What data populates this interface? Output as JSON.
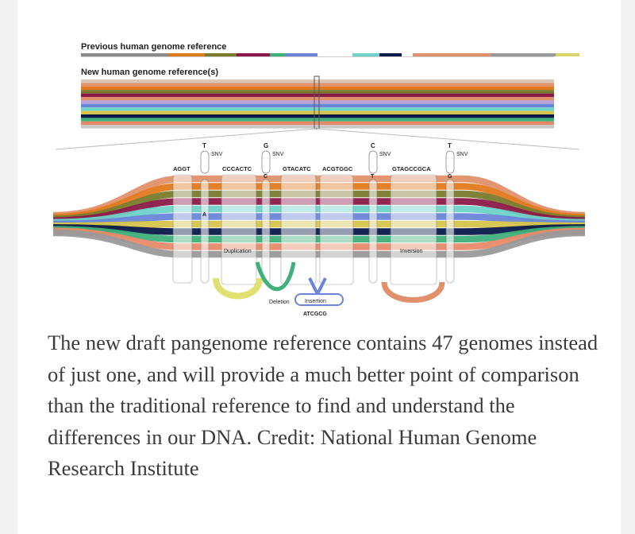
{
  "figure": {
    "previous_label": "Previous human genome reference",
    "new_label": "New human genome reference(s)",
    "previous_segments": [
      "#8b8b8b",
      "#e07a1f",
      "#7a7b2e",
      "#8b1a4a",
      "#3fb07a",
      "#6a85d8",
      "#ffffff",
      "#6fd3c8",
      "#0a1a4a",
      "#ffffff",
      "#e0906a",
      "#9a9a9a",
      "#d6d66a"
    ],
    "haplotype_colors": [
      "#e0906a",
      "#e07a1f",
      "#7a7b2e",
      "#8b1a4a",
      "#6fd3c8",
      "#6a85d8",
      "#d6c44a",
      "#0a1a4a",
      "#3fb07a",
      "#e88a6a",
      "#9a9a9a"
    ],
    "snv_markers": [
      {
        "top": "T",
        "bottom": "A",
        "label": "SNV"
      },
      {
        "top": "G",
        "bottom": "C",
        "label": "SNV"
      },
      {
        "top": "C",
        "bottom": "T",
        "label": "SNV"
      },
      {
        "top": "T",
        "bottom": "G",
        "label": "SNV"
      }
    ],
    "sequences": [
      "AGGT",
      "CCCACTC",
      "GTACATC",
      "ACGTGGC",
      "GTAGCCGCA"
    ],
    "labels": {
      "duplication": "Duplication",
      "deletion": "Deletion",
      "insertion": "Insertion",
      "insertion_seq": "ATCGCG",
      "inversion": "Inversion"
    }
  },
  "caption": "The new draft pangenome reference contains 47 genomes instead of just one, and will provide a much better point of comparison than the traditional reference to find and understand the differences in our DNA. Credit: National Human Genome Research Institute"
}
